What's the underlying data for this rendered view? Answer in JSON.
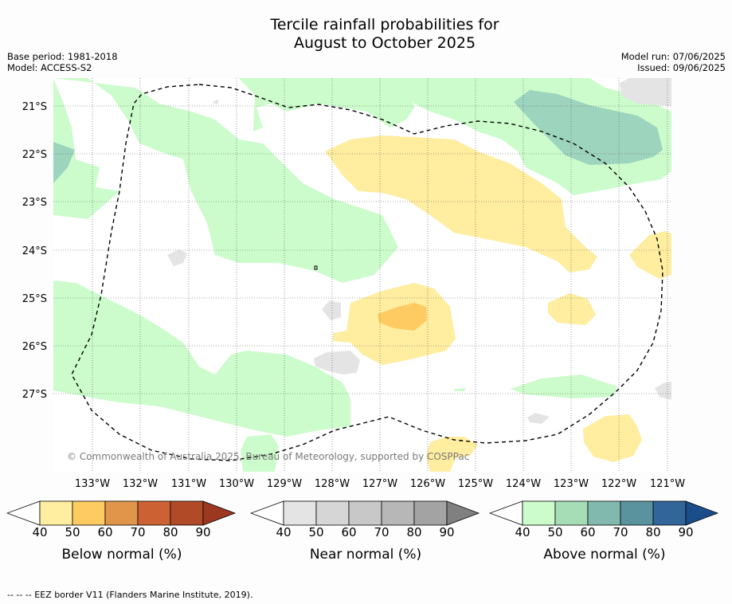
{
  "title": {
    "line1": "Tercile rainfall probabilities for",
    "line2": "August to October 2025"
  },
  "meta": {
    "base_period": "Base period: 1981-2018",
    "model": "Model: ACCESS-S2",
    "model_run": "Model run: 07/06/2025",
    "issued": "Issued: 09/06/2025"
  },
  "map": {
    "lat_labels": [
      "21°S",
      "22°S",
      "23°S",
      "24°S",
      "25°S",
      "26°S",
      "27°S"
    ],
    "lon_labels": [
      "133°W",
      "132°W",
      "131°W",
      "130°W",
      "129°W",
      "128°W",
      "127°W",
      "126°W",
      "125°W",
      "124°W",
      "123°W",
      "122°W",
      "121°W"
    ],
    "copyright": "© Commonwealth of Australia 2025, Bureau of Meteorology, supported by COSPPac",
    "colors": {
      "below_40": "#ffeda0",
      "below_50": "#fecb63",
      "near_40": "#e4e4e4",
      "above_40": "#ccfccc",
      "above_60": "#9dd4bd",
      "grid": "#555555",
      "eez": "#000000"
    }
  },
  "colorbars": [
    {
      "name": "below",
      "label": "Below normal (%)",
      "ticks": [
        "40",
        "50",
        "60",
        "70",
        "80",
        "90"
      ],
      "colors": [
        "#ffeda0",
        "#fecb63",
        "#e0954a",
        "#cc6233",
        "#b04a27",
        "#9c3820"
      ]
    },
    {
      "name": "near",
      "label": "Near normal (%)",
      "ticks": [
        "40",
        "50",
        "60",
        "70",
        "80",
        "90"
      ],
      "colors": [
        "#e4e4e4",
        "#d6d6d6",
        "#c8c8c8",
        "#b7b7b7",
        "#a3a3a3",
        "#808080"
      ]
    },
    {
      "name": "above",
      "label": "Above normal (%)",
      "ticks": [
        "40",
        "50",
        "60",
        "70",
        "80",
        "90"
      ],
      "colors": [
        "#ccfccc",
        "#a6dcb6",
        "#82b9ae",
        "#5a939d",
        "#32669a",
        "#1a4d8a"
      ]
    }
  ],
  "footnote": "-- -- -- EEZ border V11 (Flanders Marine Institute, 2019)."
}
